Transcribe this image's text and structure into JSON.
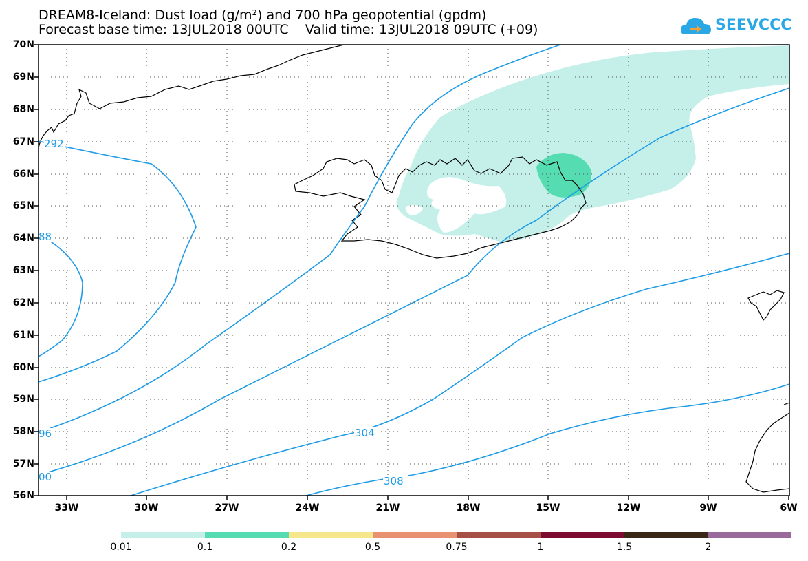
{
  "title_line1": "DREAM8-Iceland: Dust load (g/m²) and 700 hPa geopotential (gpdm)",
  "title_line2": "Forecast base time: 13JUL2018 00UTC    Valid time: 13JUL2018 09UTC (+09)",
  "logo_text": "SEEVCCC",
  "lat_labels": [
    "70N",
    "69N",
    "68N",
    "67N",
    "66N",
    "65N",
    "64N",
    "63N",
    "62N",
    "61N",
    "60N",
    "59N",
    "58N",
    "57N",
    "56N"
  ],
  "lon_labels": [
    "33W",
    "30W",
    "27W",
    "24W",
    "21W",
    "18W",
    "15W",
    "12W",
    "9W",
    "6W"
  ],
  "contour_labels": {
    "c292": "292",
    "c288": "88",
    "c296": "96",
    "c300": "00",
    "c304": "304",
    "c308": "308"
  },
  "colorbar": {
    "labels": [
      "0.01",
      "0.1",
      "0.2",
      "0.5",
      "0.75",
      "1",
      "1.5",
      "2"
    ],
    "colors": [
      "#c4f0e9",
      "#56dcb1",
      "#f6e88a",
      "#e89272",
      "#a65045",
      "#7d0a30",
      "#3a2816",
      "#9a6a9c"
    ]
  },
  "colors": {
    "contour": "#1e9be6",
    "dust_low": "#c4f0e9",
    "dust_mid": "#56dcb1"
  }
}
